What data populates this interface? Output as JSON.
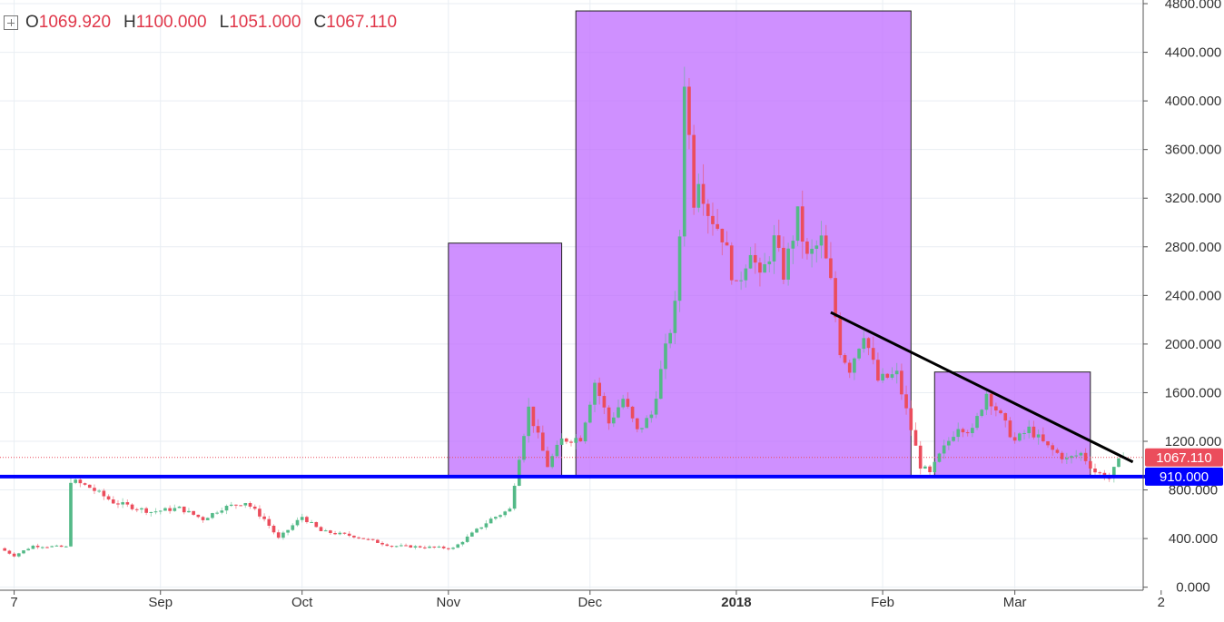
{
  "legend": {
    "o_label": "O",
    "o_value": "1069.920",
    "h_label": "H",
    "h_value": "1100.000",
    "l_label": "L",
    "l_value": "1051.000",
    "c_label": "C",
    "c_value": "1067.110"
  },
  "colors": {
    "up": "#53b987",
    "down": "#eb4d5c",
    "support": "#0000ff",
    "zone_fill": "#bf6bff",
    "trend": "#000000",
    "grid": "#e9eef3"
  },
  "price_tags": {
    "last": "1067.110",
    "support": "910.000"
  },
  "chart_data": {
    "type": "candlestick",
    "title": "",
    "y_ticks": [
      "0.000",
      "400.000",
      "800.000",
      "1200.000",
      "1600.000",
      "2000.000",
      "2400.000",
      "2800.000",
      "3200.000",
      "3600.000",
      "4000.000",
      "4400.000",
      "4800.000"
    ],
    "y_tick_values": [
      0,
      400,
      800,
      1200,
      1600,
      2000,
      2400,
      2800,
      3200,
      3600,
      4000,
      4400,
      4800
    ],
    "ylim": [
      -10,
      4830
    ],
    "x_ticks": [
      {
        "label": "7",
        "date": "2017-08-01",
        "bold": false
      },
      {
        "label": "Sep",
        "date": "2017-09-01",
        "bold": false
      },
      {
        "label": "Oct",
        "date": "2017-10-01",
        "bold": false
      },
      {
        "label": "Nov",
        "date": "2017-11-01",
        "bold": false
      },
      {
        "label": "Dec",
        "date": "2017-12-01",
        "bold": false
      },
      {
        "label": "2018",
        "date": "2018-01-01",
        "bold": true
      },
      {
        "label": "Feb",
        "date": "2018-02-01",
        "bold": false
      },
      {
        "label": "Mar",
        "date": "2018-03-01",
        "bold": false
      },
      {
        "label": "2",
        "date": "2018-04-01",
        "bold": false
      }
    ],
    "xlim": [
      "2017-07-29",
      "2018-03-28"
    ],
    "last_price": 1067.11,
    "support_level": 910,
    "anchors": [
      [
        "2017-07-29",
        320
      ],
      [
        "2017-08-01",
        260
      ],
      [
        "2017-08-05",
        340
      ],
      [
        "2017-08-12",
        330
      ],
      [
        "2017-08-13",
        880
      ],
      [
        "2017-08-17",
        820
      ],
      [
        "2017-08-22",
        700
      ],
      [
        "2017-08-30",
        620
      ],
      [
        "2017-09-05",
        650
      ],
      [
        "2017-09-10",
        560
      ],
      [
        "2017-09-14",
        650
      ],
      [
        "2017-09-19",
        700
      ],
      [
        "2017-09-23",
        560
      ],
      [
        "2017-09-26",
        400
      ],
      [
        "2017-10-01",
        580
      ],
      [
        "2017-10-05",
        460
      ],
      [
        "2017-10-12",
        420
      ],
      [
        "2017-10-20",
        340
      ],
      [
        "2017-10-27",
        330
      ],
      [
        "2017-11-02",
        320
      ],
      [
        "2017-11-10",
        560
      ],
      [
        "2017-11-14",
        640
      ],
      [
        "2017-11-16",
        1080
      ],
      [
        "2017-11-18",
        1470
      ],
      [
        "2017-11-22",
        1000
      ],
      [
        "2017-11-25",
        1210
      ],
      [
        "2017-11-29",
        1230
      ],
      [
        "2017-12-02",
        1690
      ],
      [
        "2017-12-05",
        1350
      ],
      [
        "2017-12-08",
        1550
      ],
      [
        "2017-12-11",
        1280
      ],
      [
        "2017-12-14",
        1420
      ],
      [
        "2017-12-17",
        1950
      ],
      [
        "2017-12-19",
        2300
      ],
      [
        "2017-12-20",
        2900
      ],
      [
        "2017-12-21",
        4200
      ],
      [
        "2017-12-23",
        3200
      ],
      [
        "2017-12-24",
        3400
      ],
      [
        "2017-12-26",
        3100
      ],
      [
        "2017-12-29",
        2900
      ],
      [
        "2018-01-01",
        2450
      ],
      [
        "2018-01-04",
        2800
      ],
      [
        "2018-01-06",
        2520
      ],
      [
        "2018-01-09",
        2850
      ],
      [
        "2018-01-11",
        2580
      ],
      [
        "2018-01-14",
        3050
      ],
      [
        "2018-01-16",
        2700
      ],
      [
        "2018-01-19",
        2850
      ],
      [
        "2018-01-21",
        2500
      ],
      [
        "2018-01-23",
        1950
      ],
      [
        "2018-01-25",
        1800
      ],
      [
        "2018-01-28",
        2100
      ],
      [
        "2018-01-31",
        1700
      ],
      [
        "2018-02-04",
        1750
      ],
      [
        "2018-02-06",
        1450
      ],
      [
        "2018-02-09",
        1000
      ],
      [
        "2018-02-11",
        930
      ],
      [
        "2018-02-13",
        1080
      ],
      [
        "2018-02-17",
        1330
      ],
      [
        "2018-02-20",
        1280
      ],
      [
        "2018-02-23",
        1600
      ],
      [
        "2018-02-26",
        1400
      ],
      [
        "2018-03-01",
        1200
      ],
      [
        "2018-03-04",
        1300
      ],
      [
        "2018-03-08",
        1150
      ],
      [
        "2018-03-12",
        1050
      ],
      [
        "2018-03-15",
        1100
      ],
      [
        "2018-03-18",
        950
      ],
      [
        "2018-03-21",
        900
      ],
      [
        "2018-03-23",
        1030
      ],
      [
        "2018-03-24",
        1067
      ]
    ],
    "zones": [
      {
        "from": "2017-11-01",
        "to": "2017-11-25",
        "low": 910,
        "high": 2830
      },
      {
        "from": "2017-11-28",
        "to": "2018-02-07",
        "low": 910,
        "high": 4740
      },
      {
        "from": "2018-02-12",
        "to": "2018-03-17",
        "low": 910,
        "high": 1770
      }
    ],
    "trendline": {
      "from": [
        "2018-01-21",
        2260
      ],
      "to": [
        "2018-03-26",
        1030
      ]
    }
  }
}
